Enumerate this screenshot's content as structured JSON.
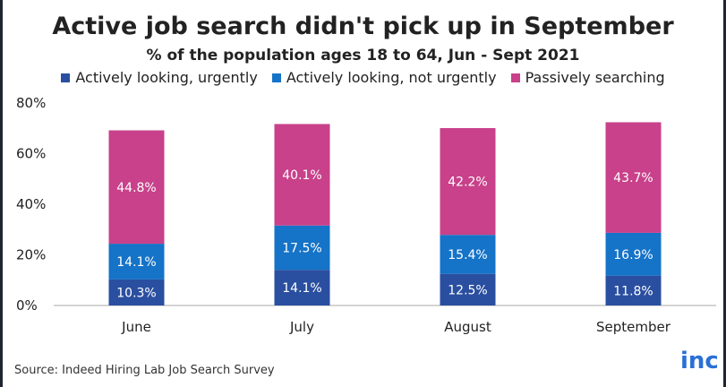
{
  "chart_data": {
    "type": "bar",
    "stacked": true,
    "title": "Active job search didn't pick up in September",
    "subtitle": "% of the population ages 18 to 64, Jun - Sept 2021",
    "categories": [
      "June",
      "July",
      "August",
      "September"
    ],
    "series": [
      {
        "name": "Actively looking, urgently",
        "color": "#2a4fa0",
        "values": [
          10.3,
          14.1,
          12.5,
          11.8
        ],
        "labels": [
          "10.3%",
          "14.1%",
          "12.5%",
          "11.8%"
        ]
      },
      {
        "name": "Actively looking, not urgently",
        "color": "#1573c8",
        "values": [
          14.1,
          17.5,
          15.4,
          16.9
        ],
        "labels": [
          "14.1%",
          "17.5%",
          "15.4%",
          "16.9%"
        ]
      },
      {
        "name": "Passively searching",
        "color": "#c8418a",
        "values": [
          44.8,
          40.1,
          42.2,
          43.7
        ],
        "labels": [
          "44.8%",
          "40.1%",
          "42.2%",
          "43.7%"
        ]
      }
    ],
    "ylim": [
      0,
      80
    ],
    "yticks": [
      "0%",
      "20%",
      "40%",
      "60%",
      "80%"
    ],
    "legend_position": "top"
  },
  "footer": {
    "source": "Source: Indeed Hiring Lab Job Search Survey",
    "logo_text": "inc"
  }
}
